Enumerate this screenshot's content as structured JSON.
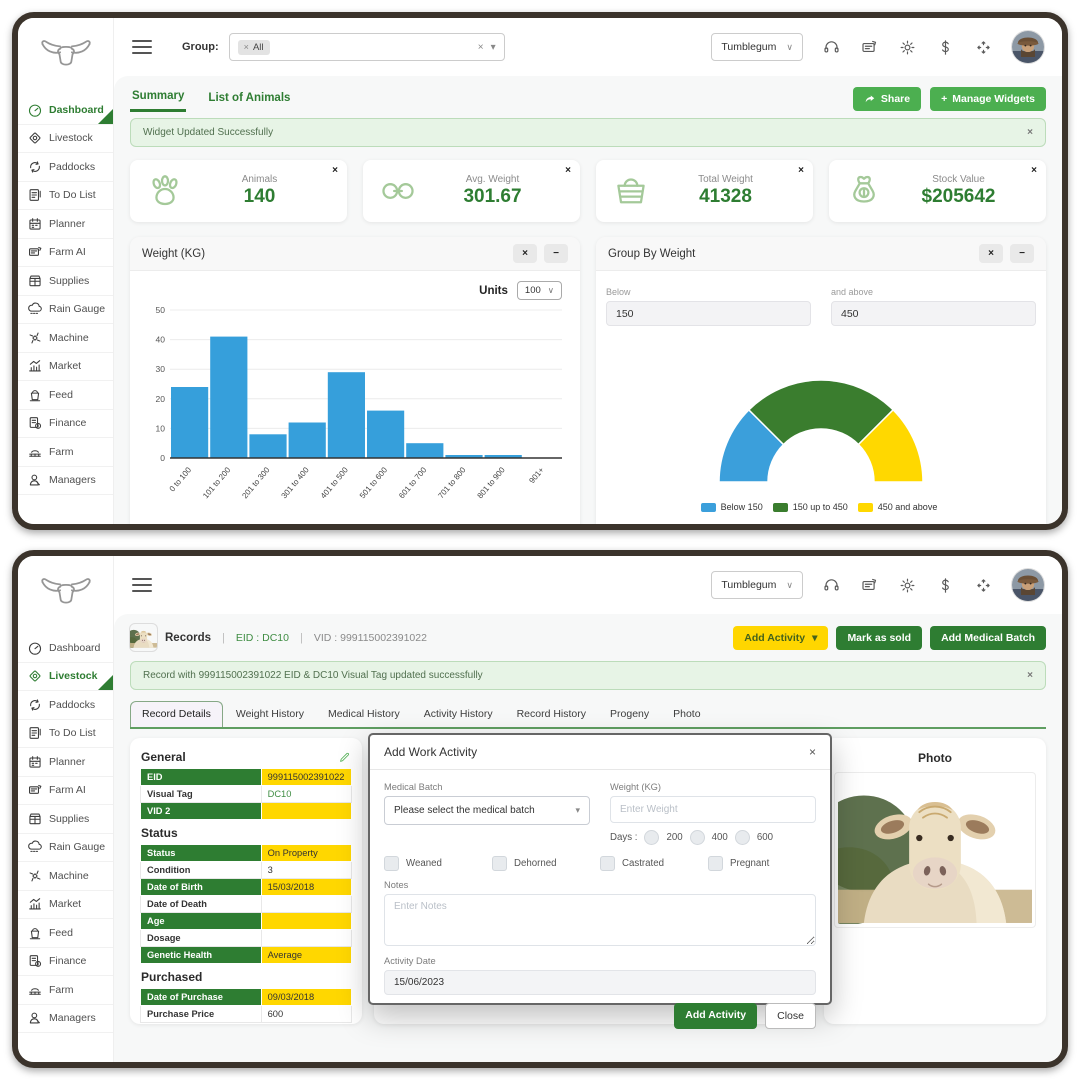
{
  "app": {
    "group_label": "Group:",
    "group_selected_tag": "All",
    "farm_selector": "Tumblegum",
    "header_icon_names": [
      "support-icon",
      "news-icon",
      "settings-icon",
      "dollar-icon",
      "fullscreen-icon"
    ],
    "glyphs": {
      "close": "×",
      "minus": "−",
      "caret": "▾",
      "chevron": "∨",
      "plus": "+",
      "pipe": "|"
    }
  },
  "sidebar": {
    "items": [
      {
        "label": "Dashboard",
        "icon": "gauge-icon"
      },
      {
        "label": "Livestock",
        "icon": "livestock-icon"
      },
      {
        "label": "Paddocks",
        "icon": "paddocks-icon"
      },
      {
        "label": "To Do List",
        "icon": "todo-icon"
      },
      {
        "label": "Planner",
        "icon": "planner-icon"
      },
      {
        "label": "Farm AI",
        "icon": "farm-ai-icon"
      },
      {
        "label": "Supplies",
        "icon": "supplies-icon"
      },
      {
        "label": "Rain Gauge",
        "icon": "rain-icon"
      },
      {
        "label": "Machine",
        "icon": "machine-icon"
      },
      {
        "label": "Market",
        "icon": "market-icon"
      },
      {
        "label": "Feed",
        "icon": "feed-icon"
      },
      {
        "label": "Finance",
        "icon": "finance-icon"
      },
      {
        "label": "Farm",
        "icon": "farm-icon"
      },
      {
        "label": "Managers",
        "icon": "managers-icon"
      }
    ]
  },
  "dashboard": {
    "tabs": {
      "summary": "Summary",
      "list_of_animals": "List of Animals"
    },
    "share_label": "Share",
    "share_icon": "share-icon",
    "manage_widgets_label": "Manage Widgets",
    "alert_text": "Widget Updated Successfully",
    "stats": [
      {
        "label": "Animals",
        "value": "140",
        "icon": "paw-icon"
      },
      {
        "label": "Avg. Weight",
        "value": "301.67",
        "icon": "link-icon"
      },
      {
        "label": "Total Weight",
        "value": "41328",
        "icon": "basket-icon"
      },
      {
        "label": "Stock Value",
        "value": "$205642",
        "icon": "money-bag-icon"
      }
    ],
    "weight_widget": {
      "title": "Weight (KG)",
      "units_label": "Units",
      "units_value": "100"
    },
    "group_widget": {
      "title": "Group By Weight",
      "below_label": "Below",
      "below_value": "150",
      "above_label": "and above",
      "above_value": "450"
    }
  },
  "chart_data": [
    {
      "type": "bar",
      "title": "Weight (KG)",
      "categories": [
        "0 to 100",
        "101 to 200",
        "201 to 300",
        "301 to 400",
        "401 to 500",
        "501 to 600",
        "601 to 700",
        "701 to 800",
        "801 to 900",
        "901+"
      ],
      "values": [
        24,
        41,
        8,
        12,
        29,
        16,
        5,
        1,
        1,
        0
      ],
      "xlabel": "",
      "ylabel": "",
      "ylim": [
        0,
        50
      ],
      "yticks": [
        0,
        10,
        20,
        30,
        40,
        50
      ],
      "grid": true,
      "bar_color": "#369fdb"
    },
    {
      "type": "gauge",
      "title": "Group By Weight",
      "legend_position": "bottom-center",
      "segments": [
        {
          "label": "Below 150",
          "value": 25,
          "color": "#3b9fdb"
        },
        {
          "label": "150 up to 450",
          "value": 50,
          "color": "#3a7d2e"
        },
        {
          "label": "450 and above",
          "value": 25,
          "color": "#ffd800"
        }
      ]
    }
  ],
  "livestock": {
    "record_bar": {
      "title": "Records",
      "eid_text": "EID : DC10",
      "vid_text": "VID : 999115002391022"
    },
    "actions": {
      "add_activity": "Add Activity",
      "mark_as_sold": "Mark as sold",
      "add_medical_batch": "Add Medical Batch"
    },
    "alert_text": "Record with 999115002391022 EID & DC10 Visual Tag updated successfully",
    "tabs": [
      "Record Details",
      "Weight History",
      "Medical History",
      "Activity History",
      "Record History",
      "Progeny",
      "Photo"
    ],
    "details": {
      "edit_icon": "pencil-icon",
      "general": {
        "heading": "General",
        "rows": [
          {
            "label": "EID",
            "value": "999115002391022"
          },
          {
            "label": "Visual Tag",
            "value": "DC10"
          },
          {
            "label": "VID 2",
            "value": ""
          }
        ]
      },
      "status": {
        "heading": "Status",
        "rows": [
          {
            "label": "Status",
            "value": "On Property"
          },
          {
            "label": "Condition",
            "value": "3"
          },
          {
            "label": "Date of Birth",
            "value": "15/03/2018"
          },
          {
            "label": "Date of Death",
            "value": ""
          },
          {
            "label": "Age",
            "value": ""
          },
          {
            "label": "Dosage",
            "value": ""
          },
          {
            "label": "Genetic Health",
            "value": "Average"
          }
        ]
      },
      "purchased": {
        "heading": "Purchased",
        "rows": [
          {
            "label": "Date of Purchase",
            "value": "09/03/2018"
          },
          {
            "label": "Purchase Price",
            "value": "600"
          }
        ]
      }
    },
    "photo_title": "Photo",
    "modal": {
      "title": "Add Work Activity",
      "medical_batch_label": "Medical Batch",
      "medical_batch_placeholder": "Please select the medical batch",
      "weight_label": "Weight (KG)",
      "weight_placeholder": "Enter Weight",
      "days_label": "Days :",
      "days_options": [
        "200",
        "400",
        "600"
      ],
      "checkboxes": [
        "Weaned",
        "Dehorned",
        "Castrated",
        "Pregnant"
      ],
      "notes_label": "Notes",
      "notes_placeholder": "Enter Notes",
      "activity_date_label": "Activity Date",
      "activity_date_value": "15/06/2023",
      "submit_label": "Add Activity",
      "close_label": "Close"
    }
  }
}
